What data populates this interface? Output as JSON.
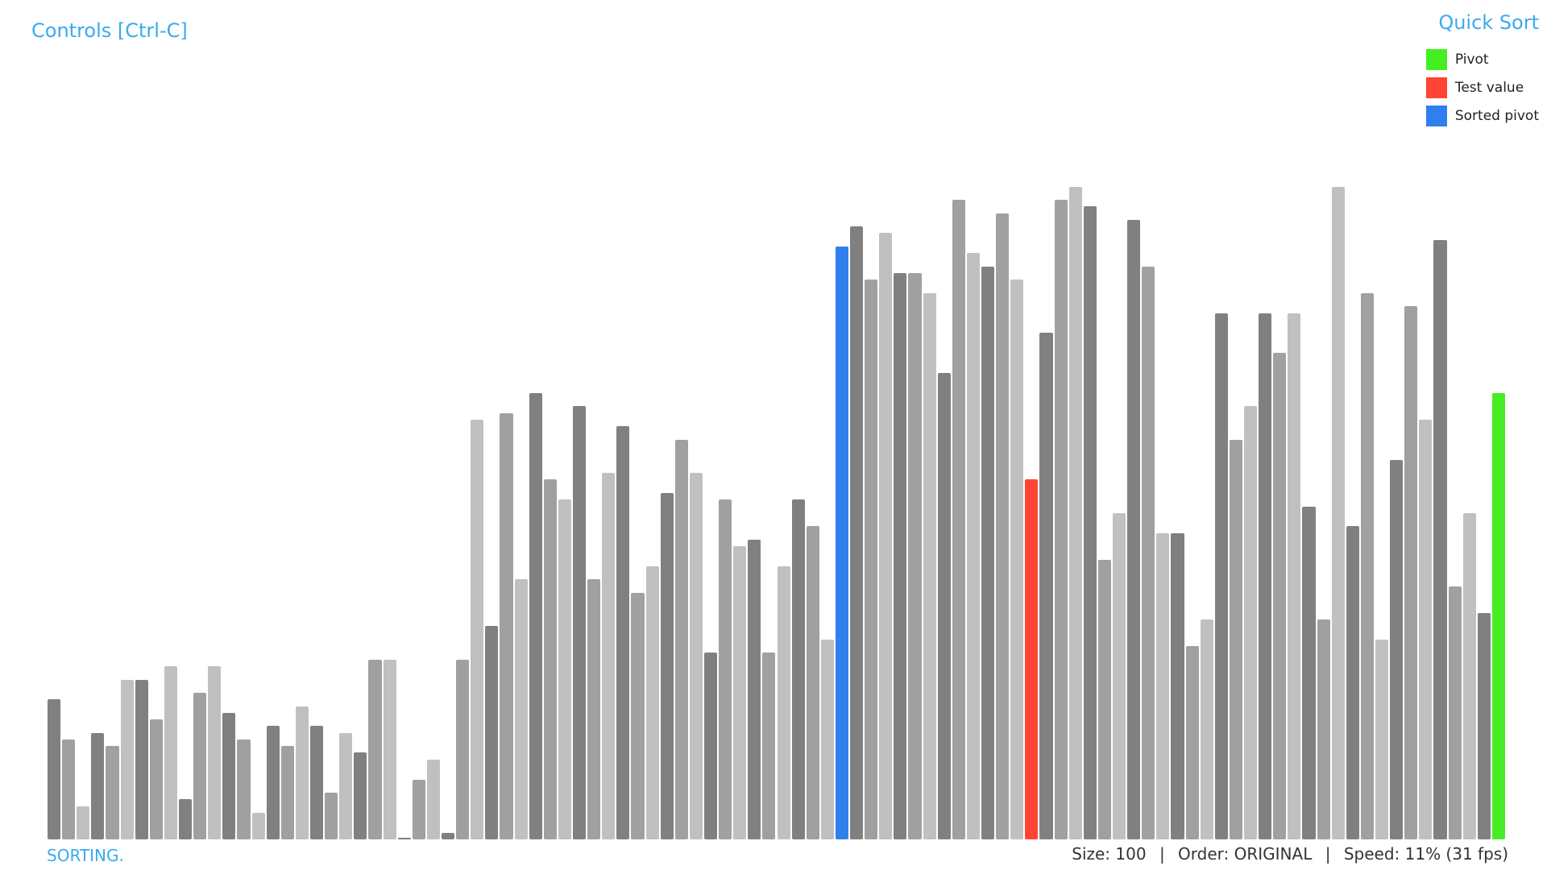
{
  "header": {
    "controls_label": "Controls [Ctrl-C]",
    "algorithm_title": "Quick Sort"
  },
  "legend": [
    {
      "label": "Pivot",
      "color": "#44ee22"
    },
    {
      "label": "Test value",
      "color": "#ff4433"
    },
    {
      "label": "Sorted pivot",
      "color": "#2f80ed"
    }
  ],
  "status": {
    "state": "SORTING."
  },
  "info": {
    "size": "Size: 100",
    "order": "Order: ORIGINAL",
    "speed": "Speed: 11% (31 fps)",
    "separator": "|"
  },
  "colors": {
    "shade_dark": "#808080",
    "shade_mid": "#a0a0a0",
    "shade_light": "#c0c0c0",
    "pivot": "#44ee22",
    "test": "#ff4433",
    "sorted_pivot": "#2f80ed",
    "accent": "#3aaaf0"
  },
  "chart_data": {
    "type": "bar",
    "values": [
      21,
      15,
      5,
      16,
      14,
      24,
      24,
      18,
      26,
      6,
      22,
      26,
      19,
      15,
      4,
      17,
      14,
      20,
      17,
      7,
      16,
      13,
      27,
      27,
      0,
      9,
      12,
      1,
      27,
      63,
      32,
      64,
      39,
      67,
      54,
      51,
      65,
      39,
      55,
      62,
      37,
      41,
      52,
      60,
      55,
      28,
      51,
      44,
      45,
      28,
      41,
      51,
      47,
      30,
      89,
      92,
      84,
      91,
      85,
      85,
      82,
      70,
      96,
      88,
      86,
      94,
      84,
      54,
      76,
      96,
      98,
      95,
      42,
      49,
      93,
      86,
      46,
      46,
      29,
      33,
      79,
      60,
      65,
      79,
      73,
      79,
      50,
      33,
      98,
      47,
      82,
      30,
      57,
      80,
      63,
      90,
      38,
      49,
      34,
      67
    ],
    "states": [
      "d",
      "m",
      "l",
      "d",
      "m",
      "l",
      "d",
      "m",
      "l",
      "d",
      "m",
      "l",
      "d",
      "m",
      "l",
      "d",
      "m",
      "l",
      "d",
      "m",
      "l",
      "d",
      "m",
      "l",
      "d",
      "m",
      "l",
      "d",
      "m",
      "l",
      "d",
      "m",
      "l",
      "d",
      "m",
      "l",
      "d",
      "m",
      "l",
      "d",
      "m",
      "l",
      "d",
      "m",
      "l",
      "d",
      "m",
      "l",
      "d",
      "m",
      "l",
      "d",
      "m",
      "l",
      "sorted",
      "d",
      "m",
      "l",
      "d",
      "m",
      "l",
      "d",
      "m",
      "l",
      "d",
      "m",
      "l",
      "test",
      "d",
      "m",
      "l",
      "d",
      "m",
      "l",
      "d",
      "m",
      "l",
      "d",
      "m",
      "l",
      "d",
      "m",
      "l",
      "d",
      "m",
      "l",
      "d",
      "m",
      "l",
      "d",
      "m",
      "l",
      "d",
      "m",
      "l",
      "d",
      "m",
      "l",
      "d",
      "pivot"
    ],
    "ylim": [
      0,
      100
    ]
  }
}
